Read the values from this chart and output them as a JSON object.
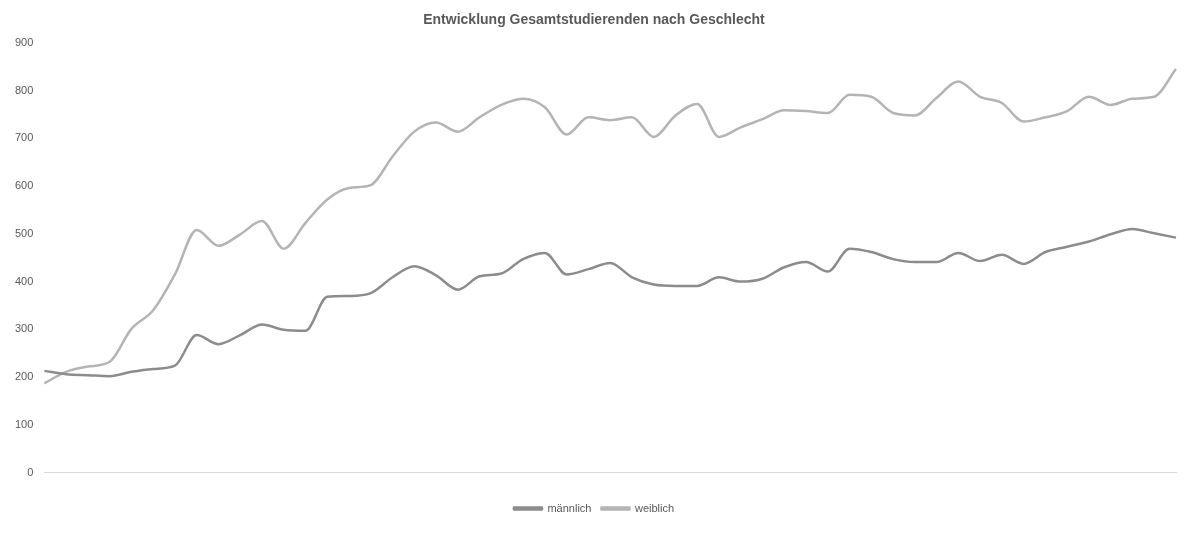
{
  "chart_data": {
    "type": "line",
    "title": "Entwicklung Gesamtstudierenden nach Geschlecht",
    "categories": [
      null,
      null,
      null,
      null,
      null,
      null,
      null,
      null,
      null,
      null,
      null,
      null,
      null,
      null,
      null,
      null,
      null,
      null,
      null,
      null,
      null,
      null,
      null,
      null,
      null,
      null,
      null,
      null,
      null,
      null,
      null,
      null,
      null,
      null,
      null,
      null,
      null,
      null,
      null,
      null,
      null,
      null,
      null,
      null,
      null,
      null,
      null,
      null,
      null,
      null,
      null,
      null,
      null
    ],
    "series": [
      {
        "name": "männlich",
        "color": "#8c8c8c",
        "values": [
          213,
          206,
          204,
          202,
          211,
          217,
          224,
          288,
          269,
          288,
          310,
          299,
          297,
          368,
          370,
          376,
          409,
          432,
          413,
          383,
          411,
          417,
          447,
          460,
          415,
          426,
          439,
          409,
          394,
          391,
          391,
          409,
          400,
          406,
          430,
          441,
          421,
          469,
          462,
          447,
          441,
          441,
          460,
          443,
          456,
          437,
          462,
          473,
          484,
          499,
          510,
          501,
          492
        ]
      },
      {
        "name": "weiblich",
        "color": "#b4b4b4",
        "values": [
          187,
          211,
          222,
          232,
          301,
          340,
          415,
          508,
          475,
          499,
          527,
          469,
          523,
          572,
          596,
          602,
          662,
          714,
          733,
          714,
          744,
          770,
          783,
          765,
          708,
          744,
          738,
          744,
          703,
          748,
          772,
          703,
          723,
          740,
          759,
          757,
          753,
          791,
          787,
          753,
          748,
          785,
          819,
          787,
          774,
          735,
          744,
          757,
          787,
          770,
          783,
          787,
          845
        ]
      }
    ],
    "ylim": [
      0,
      900
    ],
    "yticks": [
      0,
      100,
      200,
      300,
      400,
      500,
      600,
      700,
      800,
      900
    ],
    "grid": false,
    "legend": "bottom",
    "marker": "none",
    "line_style": "solid"
  }
}
